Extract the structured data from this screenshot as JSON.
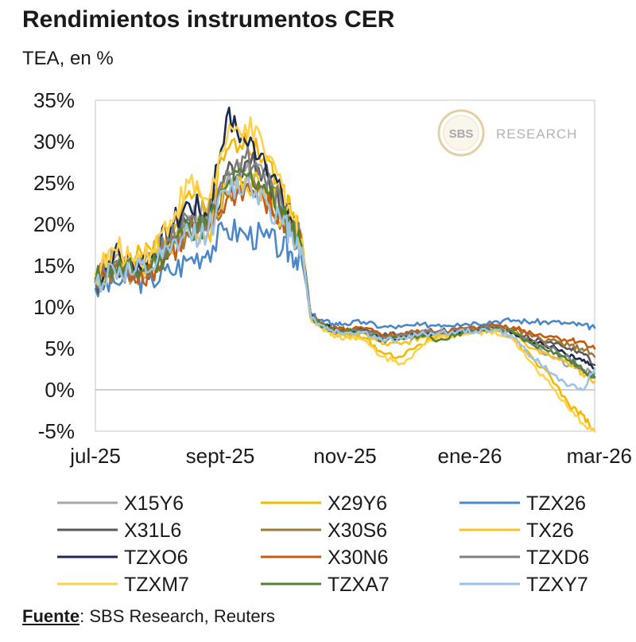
{
  "title": "Rendimientos instrumentos CER",
  "subtitle": "TEA, en %",
  "source": {
    "label": "Fuente",
    "text": ": SBS Research, Reuters"
  },
  "watermark": {
    "logo": "SBS",
    "text": "RESEARCH"
  },
  "chart_data": {
    "type": "line",
    "title": "Rendimientos instrumentos CER",
    "ylabel": "TEA, en %",
    "xlabel": "",
    "ylim": [
      -5,
      35
    ],
    "yticks": [
      -5,
      0,
      5,
      10,
      15,
      20,
      25,
      30,
      35
    ],
    "ytick_labels": [
      "-5%",
      "0%",
      "5%",
      "10%",
      "15%",
      "20%",
      "25%",
      "30%",
      "35%"
    ],
    "xlim": [
      0,
      8
    ],
    "xticks": [
      0,
      2,
      4,
      6,
      8
    ],
    "xtick_labels": [
      "jul-25",
      "sept-25",
      "nov-25",
      "ene-26",
      "mar-26"
    ],
    "x_unit": "months since jul-25",
    "grid": false,
    "legend_position": "bottom",
    "zero_line": true,
    "base_x": [
      0,
      0.3,
      0.6,
      0.9,
      1.2,
      1.5,
      1.8,
      2.1,
      2.4,
      2.7,
      3.0,
      3.15,
      3.3,
      3.45,
      3.6,
      3.8,
      4.0,
      4.3,
      4.6,
      4.9,
      5.2,
      5.5,
      5.8,
      6.1,
      6.4,
      6.7,
      7.0,
      7.3,
      7.6,
      7.8,
      8.0
    ],
    "series": [
      {
        "name": "X15Y6",
        "color": "#a6a6a6",
        "values": [
          13.2,
          15.8,
          14.4,
          15.8,
          18.5,
          21.0,
          21.2,
          25.0,
          26.5,
          26.0,
          22.0,
          20.0,
          18.0,
          9.0,
          8.0,
          7.2,
          7.0,
          7.1,
          6.0,
          6.4,
          6.8,
          7.0,
          7.1,
          7.2,
          7.8,
          7.0,
          5.5,
          4.0,
          3.0,
          2.5,
          2.0
        ]
      },
      {
        "name": "X29Y6",
        "color": "#f5b800",
        "values": [
          14.0,
          16.8,
          15.2,
          16.8,
          20.0,
          24.0,
          22.0,
          29.0,
          31.0,
          28.0,
          24.0,
          21.0,
          18.8,
          8.8,
          7.8,
          6.8,
          6.5,
          6.3,
          4.5,
          4.0,
          5.5,
          6.6,
          6.8,
          7.0,
          7.2,
          6.2,
          3.8,
          1.5,
          -2.0,
          -3.0,
          -5.0
        ]
      },
      {
        "name": "TZX26",
        "color": "#4a86c8",
        "values": [
          12.2,
          13.0,
          13.4,
          13.5,
          14.2,
          15.8,
          16.8,
          19.5,
          18.8,
          18.5,
          17.0,
          16.5,
          16.0,
          9.2,
          8.4,
          8.0,
          8.0,
          8.2,
          7.6,
          7.6,
          7.8,
          7.9,
          8.0,
          8.1,
          8.3,
          8.4,
          8.2,
          8.2,
          8.0,
          7.8,
          7.5
        ]
      },
      {
        "name": "X31L6",
        "color": "#5a5a5a",
        "values": [
          13.0,
          15.0,
          14.2,
          15.2,
          17.5,
          20.0,
          20.0,
          26.0,
          27.5,
          26.5,
          22.0,
          19.8,
          17.8,
          9.0,
          8.0,
          7.3,
          7.1,
          7.2,
          6.5,
          6.8,
          7.0,
          7.1,
          7.2,
          7.3,
          7.6,
          7.2,
          6.0,
          5.8,
          5.0,
          4.5,
          3.0
        ]
      },
      {
        "name": "X30S6",
        "color": "#9e7b3a",
        "values": [
          13.4,
          14.8,
          14.0,
          14.8,
          16.8,
          19.0,
          19.5,
          23.5,
          25.0,
          23.5,
          20.5,
          19.5,
          17.5,
          8.8,
          7.9,
          7.2,
          7.0,
          7.2,
          6.4,
          6.6,
          6.9,
          7.0,
          7.2,
          7.3,
          7.6,
          7.4,
          6.4,
          6.0,
          5.3,
          5.0,
          4.0
        ]
      },
      {
        "name": "TX26",
        "color": "#f7c325",
        "values": [
          13.6,
          15.3,
          14.3,
          15.3,
          17.3,
          19.5,
          19.0,
          24.0,
          25.5,
          24.5,
          21.0,
          19.5,
          17.8,
          8.6,
          7.6,
          7.0,
          6.6,
          6.8,
          5.5,
          5.5,
          6.3,
          6.8,
          7.0,
          7.2,
          7.5,
          7.0,
          5.0,
          4.0,
          3.0,
          2.0,
          1.0
        ]
      },
      {
        "name": "TZXO6",
        "color": "#1b2a4e",
        "values": [
          13.0,
          16.5,
          15.0,
          16.0,
          19.5,
          22.5,
          21.0,
          33.0,
          30.0,
          28.5,
          23.0,
          20.5,
          17.8,
          9.0,
          8.0,
          7.3,
          7.1,
          7.2,
          6.2,
          6.4,
          6.8,
          7.0,
          7.1,
          7.2,
          7.5,
          7.0,
          5.8,
          5.2,
          4.0,
          3.5,
          2.5
        ]
      },
      {
        "name": "X30N6",
        "color": "#c55a11",
        "values": [
          13.5,
          14.5,
          14.0,
          14.5,
          16.5,
          18.5,
          19.0,
          23.0,
          24.5,
          23.0,
          20.0,
          19.0,
          17.8,
          8.9,
          8.0,
          7.4,
          7.2,
          7.4,
          6.6,
          6.8,
          7.0,
          7.1,
          7.3,
          7.4,
          7.8,
          7.6,
          6.8,
          6.5,
          6.0,
          5.8,
          5.0
        ]
      },
      {
        "name": "TZXD6",
        "color": "#7f7f7f",
        "values": [
          13.0,
          15.4,
          14.2,
          15.2,
          17.8,
          20.5,
          20.5,
          26.5,
          28.0,
          26.0,
          22.0,
          20.0,
          17.8,
          8.9,
          7.9,
          7.2,
          7.0,
          7.1,
          6.3,
          6.6,
          6.9,
          7.0,
          7.1,
          7.2,
          7.5,
          7.0,
          5.8,
          5.0,
          3.8,
          2.5,
          1.5
        ]
      },
      {
        "name": "TZXM7",
        "color": "#ffd24d",
        "values": [
          13.8,
          17.0,
          15.8,
          17.0,
          20.5,
          25.0,
          23.0,
          30.0,
          32.0,
          29.0,
          24.5,
          21.0,
          18.2,
          8.7,
          7.7,
          6.7,
          6.3,
          6.0,
          4.0,
          3.2,
          5.0,
          6.4,
          6.7,
          6.9,
          7.1,
          6.0,
          3.2,
          0.5,
          -2.5,
          -4.0,
          -5.0
        ]
      },
      {
        "name": "TZXA7",
        "color": "#548235",
        "values": [
          13.1,
          14.9,
          14.1,
          15.0,
          17.2,
          19.7,
          19.8,
          24.5,
          26.0,
          24.8,
          21.0,
          19.5,
          17.5,
          8.8,
          7.9,
          7.2,
          7.0,
          7.1,
          6.0,
          6.2,
          6.6,
          6.0,
          6.8,
          7.1,
          7.4,
          6.8,
          5.5,
          4.8,
          3.5,
          2.5,
          1.5
        ]
      },
      {
        "name": "TZXY7",
        "color": "#9dc3e6",
        "values": [
          12.8,
          14.6,
          13.9,
          14.6,
          16.6,
          19.0,
          19.0,
          24.0,
          25.0,
          23.5,
          20.0,
          19.0,
          17.2,
          8.9,
          7.9,
          7.1,
          6.9,
          7.0,
          5.9,
          6.2,
          6.7,
          6.9,
          7.0,
          7.1,
          7.3,
          6.3,
          4.0,
          2.0,
          0.5,
          0.0,
          2.5
        ]
      }
    ]
  }
}
